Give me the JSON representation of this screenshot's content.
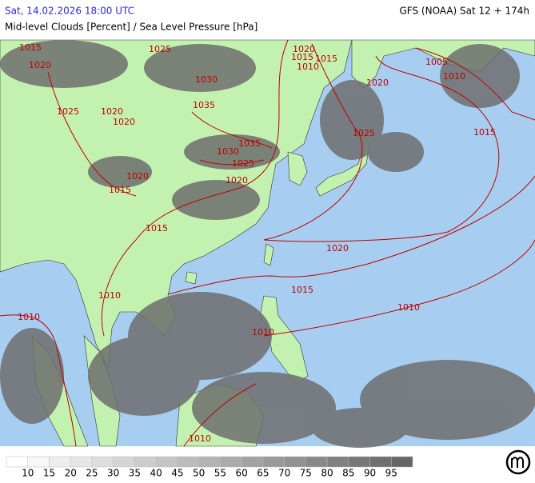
{
  "header": {
    "datetime": "Sat, 14.02.2026 18:00 UTC",
    "model": "GFS (NOAA) Sat 12 + 174h",
    "product": "Mid-level Clouds [Percent] / Sea Level Pressure [hPa]"
  },
  "isobar_labels": [
    1020,
    1015,
    1015,
    1010,
    1005,
    1010,
    1020,
    1015,
    1025,
    1035,
    1030,
    1025,
    1020,
    1020,
    1015,
    1015,
    1020,
    1015,
    1010,
    1010,
    1010,
    1010,
    1010,
    1035,
    1030,
    1025,
    1020,
    1020,
    1015,
    1020,
    1025
  ],
  "legend": {
    "ticks": [
      10,
      15,
      20,
      25,
      30,
      35,
      40,
      45,
      50,
      55,
      60,
      65,
      70,
      75,
      80,
      85,
      90,
      95
    ]
  }
}
